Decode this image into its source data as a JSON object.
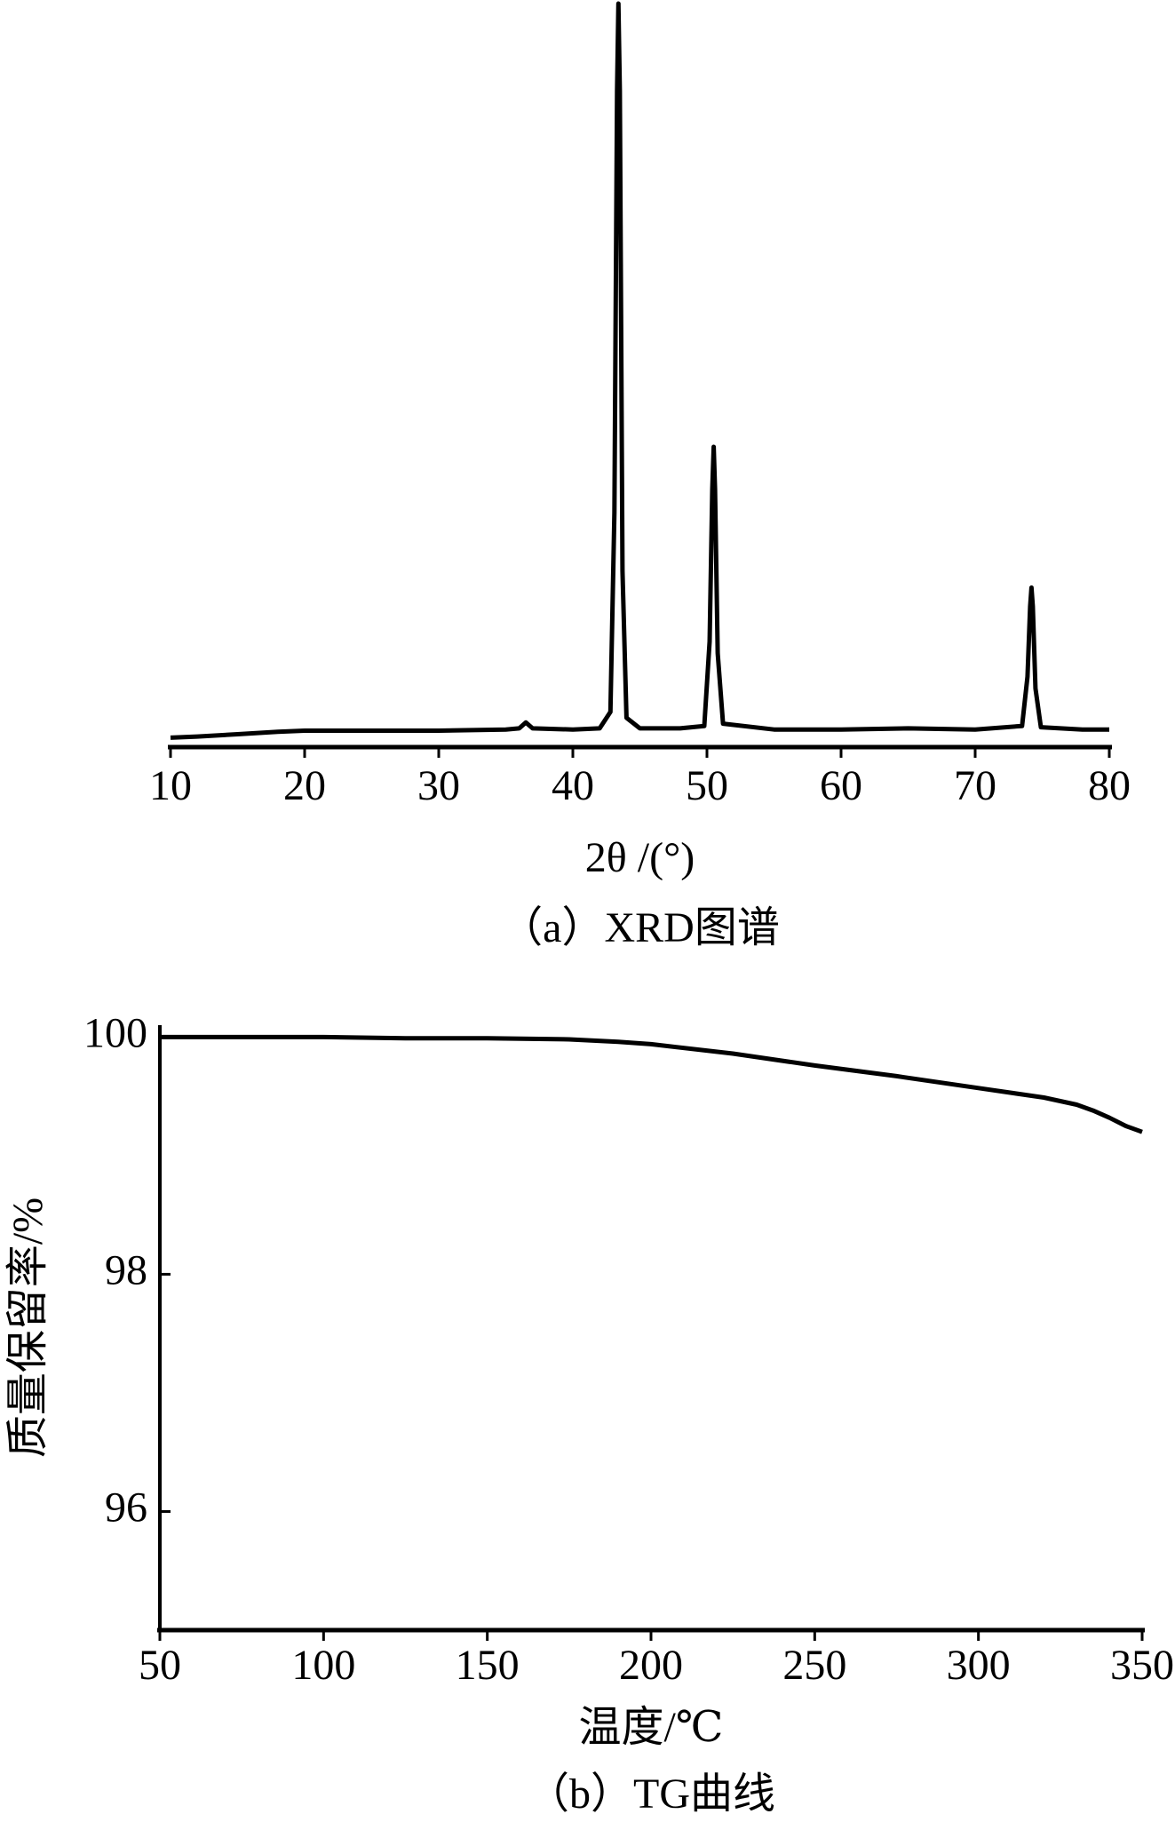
{
  "chart_data": [
    {
      "type": "line",
      "caption": "（a）XRD图谱",
      "x_label": "2θ /(°)",
      "xlim": [
        10,
        80
      ],
      "xticks": [
        10,
        20,
        30,
        40,
        50,
        60,
        70,
        80
      ],
      "series": [
        {
          "color": "#000000",
          "x": [
            10,
            12,
            15,
            18,
            20,
            25,
            30,
            35,
            36,
            36.5,
            37,
            40,
            42,
            42.8,
            43.1,
            43.3,
            43.4,
            43.5,
            43.7,
            44,
            45,
            48,
            49.8,
            50.2,
            50.4,
            50.5,
            50.6,
            50.8,
            51.2,
            55,
            60,
            65,
            70,
            73.5,
            73.9,
            74.1,
            74.2,
            74.3,
            74.5,
            74.9,
            78,
            80
          ],
          "values": [
            8,
            9,
            11,
            13,
            14,
            14,
            14,
            15,
            16,
            21,
            16,
            15,
            16,
            30,
            200,
            560,
            634,
            560,
            150,
            25,
            16,
            16,
            18,
            90,
            220,
            256,
            220,
            80,
            20,
            15,
            15,
            16,
            15,
            18,
            60,
            120,
            136,
            120,
            50,
            17,
            15,
            15
          ]
        }
      ]
    },
    {
      "type": "line",
      "caption": "（b）TG曲线",
      "x_label": "温度/℃",
      "y_label": "质量保留率/%",
      "xlim": [
        50,
        350
      ],
      "xticks": [
        50,
        100,
        150,
        200,
        250,
        300,
        350
      ],
      "ylim": [
        95,
        100.1
      ],
      "yticks": [
        96,
        98,
        100
      ],
      "series": [
        {
          "color": "#000000",
          "x": [
            50,
            75,
            100,
            125,
            150,
            175,
            190,
            200,
            225,
            250,
            275,
            300,
            320,
            330,
            335,
            340,
            345,
            350
          ],
          "values": [
            100.0,
            100.0,
            100.0,
            99.99,
            99.99,
            99.98,
            99.96,
            99.94,
            99.86,
            99.76,
            99.67,
            99.57,
            99.49,
            99.43,
            99.38,
            99.32,
            99.25,
            99.2
          ]
        }
      ]
    }
  ]
}
